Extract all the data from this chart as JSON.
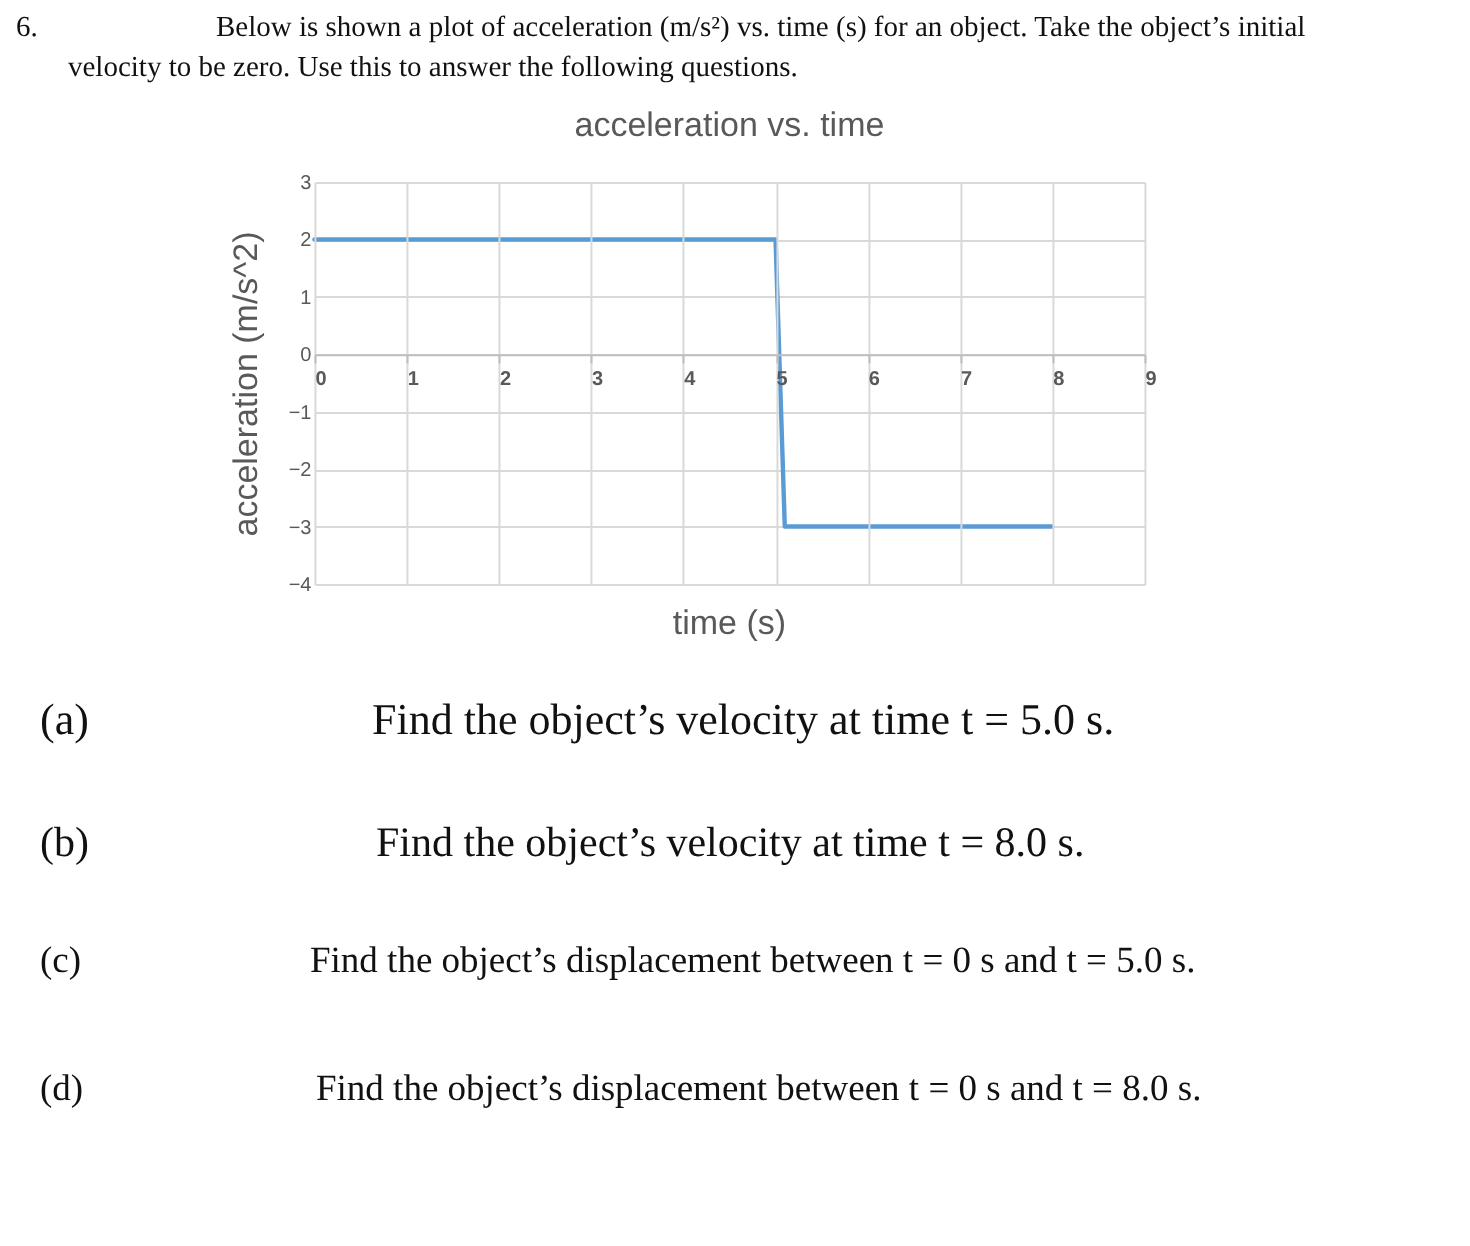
{
  "chart_data": {
    "type": "line",
    "title": "acceleration vs. time",
    "xlabel": "time (s)",
    "ylabel": "acceleration (m/s^2)",
    "x": [
      0,
      5,
      5.1,
      8
    ],
    "series": [
      {
        "color": "#5b9bd5",
        "values": [
          2,
          2,
          -3,
          -3
        ]
      }
    ],
    "xlim": [
      0,
      9
    ],
    "xticks": [
      0,
      1,
      2,
      3,
      4,
      5,
      6,
      7,
      8,
      9
    ],
    "ylim": [
      -4,
      3
    ],
    "yticks": [
      -4,
      -3,
      -2,
      -1,
      0,
      1,
      2,
      3
    ],
    "grid": true,
    "annotations": [
      "6.",
      "Below is shown a plot of acceleration (m/s²) vs.  time (s) for an object.  Take the object’s initial",
      "velocity to be zero. Use this to answer the following questions.",
      "(a)",
      "Find the object’s velocity at time t = 5.0 s.",
      "(b)",
      "Find the object’s velocity at time t = 8.0 s.",
      "(c)",
      "Find the object’s displacement between t = 0 s and t = 5.0 s.",
      "(d)",
      "Find the object’s displacement between t = 0 s and t = 8.0 s."
    ]
  }
}
